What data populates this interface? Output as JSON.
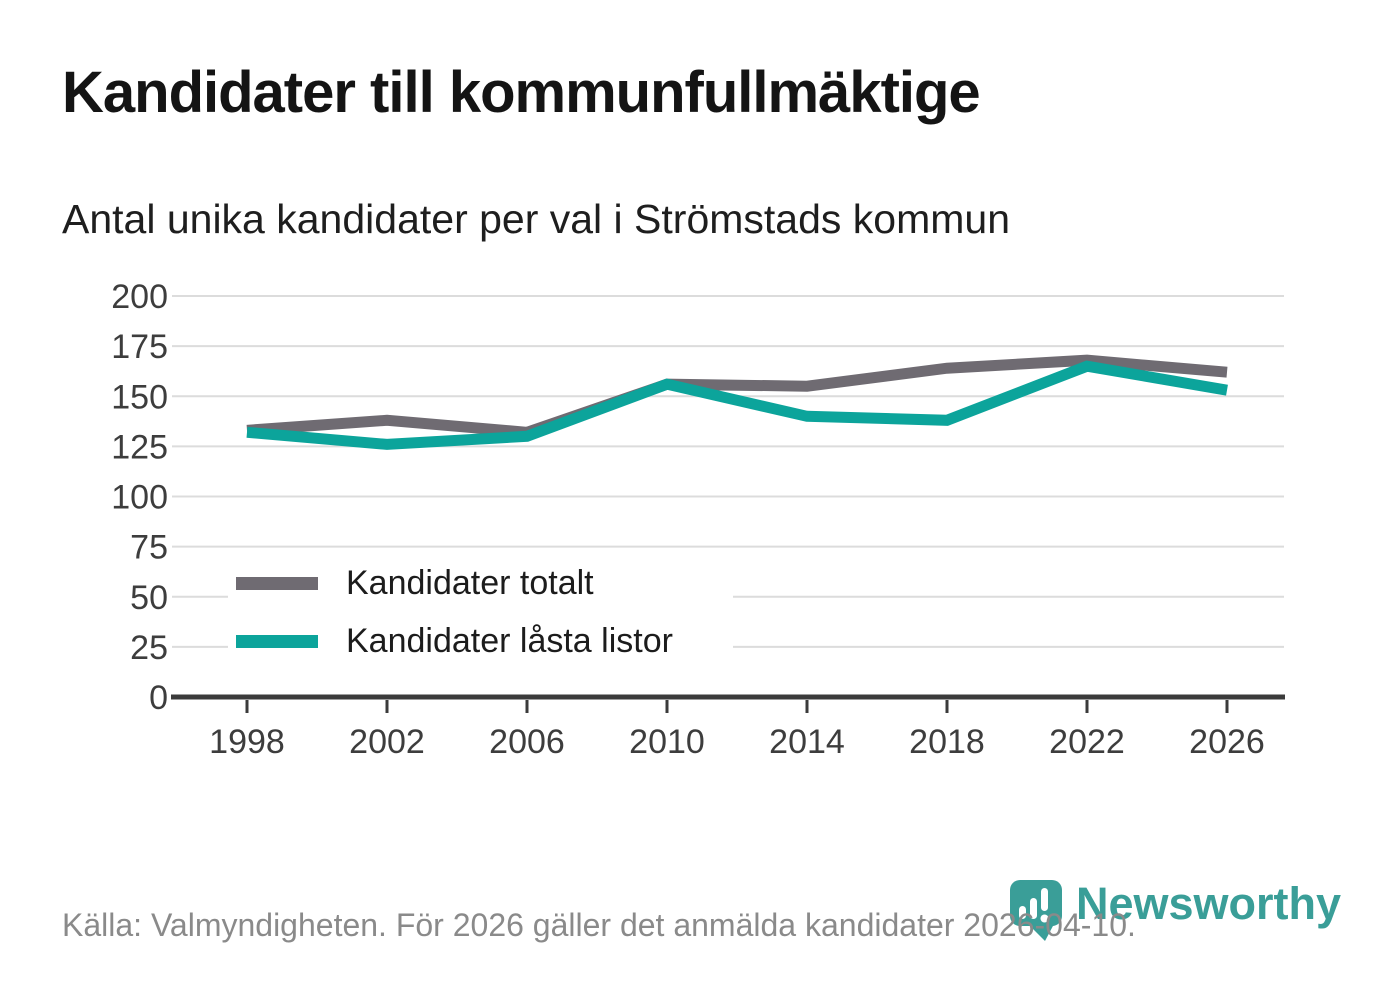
{
  "header": {
    "title": "Kandidater till kommunfullmäktige",
    "subtitle": "Antal unika kandidater per val i Strömstads kommun"
  },
  "chart_data": {
    "type": "line",
    "title": "Kandidater till kommunfullmäktige",
    "subtitle": "Antal unika kandidater per val i Strömstads kommun",
    "categories": [
      "1998",
      "2002",
      "2006",
      "2010",
      "2014",
      "2018",
      "2022",
      "2026"
    ],
    "series": [
      {
        "name": "Kandidater totalt",
        "color": "#6f6b72",
        "values": [
          133,
          138,
          132,
          156,
          155,
          164,
          168,
          162
        ]
      },
      {
        "name": "Kandidater låsta listor",
        "color": "#0ca49b",
        "values": [
          132,
          126,
          130,
          156,
          140,
          138,
          165,
          153
        ]
      }
    ],
    "xlabel": "",
    "ylabel": "",
    "ylim": [
      0,
      200
    ],
    "yticks": [
      0,
      25,
      50,
      75,
      100,
      125,
      150,
      175,
      200
    ],
    "grid": true,
    "legend_position": "inside-bottom-left"
  },
  "colors": {
    "grid": "#dcdcdc",
    "axis": "#3b3b3b",
    "tick_label": "#3d3d3d",
    "title": "#141414",
    "subtitle": "#1e1e1e",
    "footer_text": "#8a8a8a",
    "brand_teal": "#3a9e98"
  },
  "footer": {
    "source": "Källa: Valmyndigheten. För 2026 gäller det anmälda kandidater 2026-04-10.",
    "logo_text": "Newsworthy"
  }
}
